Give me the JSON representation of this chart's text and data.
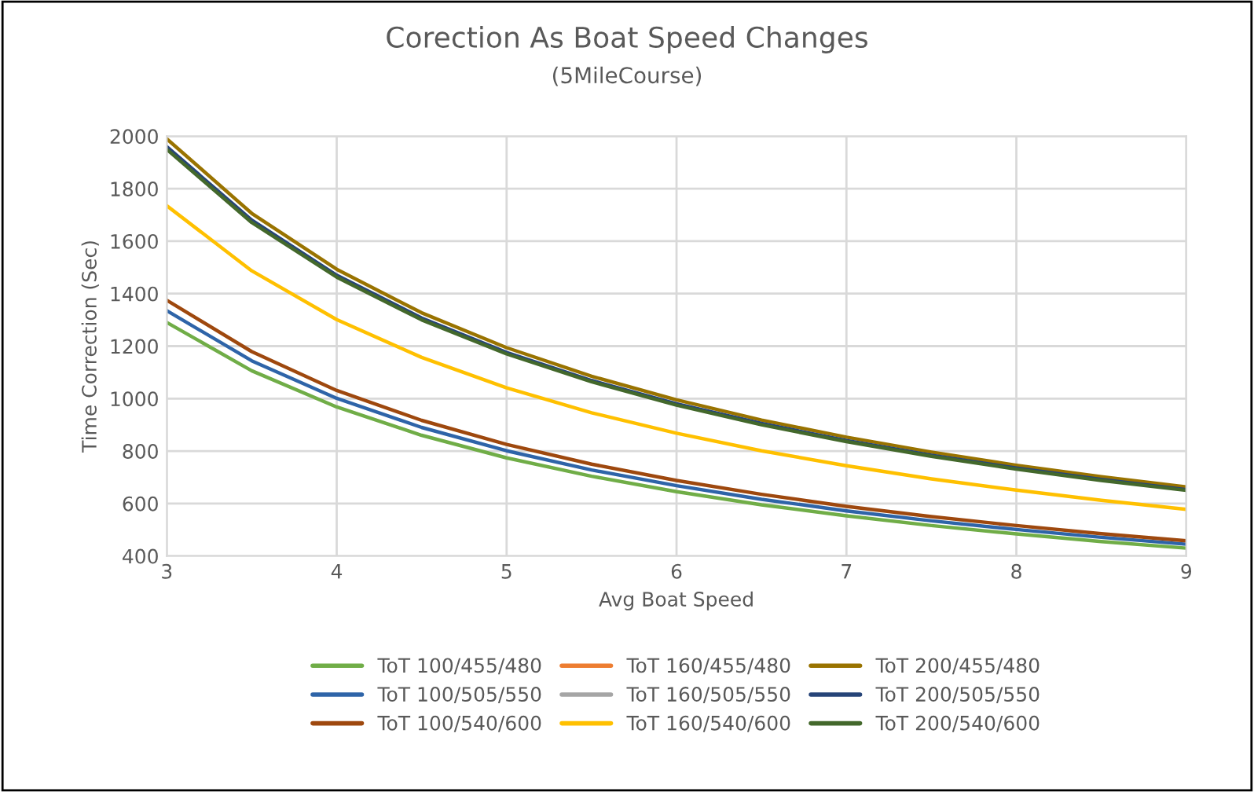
{
  "chart_data": {
    "type": "line",
    "title": "Corection As Boat Speed Changes",
    "subtitle": "(5MileCourse)",
    "xlabel": "Avg Boat Speed",
    "ylabel": "Time Correction (Sec)",
    "x": [
      3,
      3.5,
      4,
      4.5,
      5,
      5.5,
      6,
      6.5,
      7,
      7.5,
      8,
      8.5,
      9
    ],
    "series": [
      {
        "name": "ToT 100/455/480",
        "color": "#70ad47",
        "values": [
          1290,
          1106,
          968,
          860,
          774,
          704,
          645,
          595,
          553,
          516,
          484,
          455,
          430
        ]
      },
      {
        "name": "ToT 100/505/550",
        "color": "#2e64a8",
        "values": [
          1335,
          1144,
          1001,
          890,
          801,
          728,
          668,
          616,
          572,
          534,
          501,
          471,
          445
        ]
      },
      {
        "name": "ToT 100/540/600",
        "color": "#9e480e",
        "values": [
          1375,
          1179,
          1031,
          917,
          825,
          750,
          688,
          635,
          589,
          550,
          516,
          485,
          458
        ]
      },
      {
        "name": "ToT 160/455/480",
        "color": "#ed7d31",
        "values": [
          null,
          null,
          null,
          null,
          null,
          null,
          null,
          null,
          null,
          null,
          null,
          null,
          null
        ]
      },
      {
        "name": "ToT 160/505/550",
        "color": "#a5a5a5",
        "values": [
          null,
          null,
          null,
          null,
          null,
          null,
          null,
          null,
          null,
          null,
          null,
          null,
          null
        ]
      },
      {
        "name": "ToT 160/540/600",
        "color": "#ffc000",
        "values": [
          1735,
          1487,
          1301,
          1157,
          1041,
          946,
          868,
          801,
          744,
          694,
          651,
          612,
          578
        ]
      },
      {
        "name": "ToT 200/455/480",
        "color": "#997300",
        "values": [
          1990,
          1706,
          1493,
          1327,
          1194,
          1085,
          995,
          918,
          853,
          796,
          746,
          702,
          663
        ]
      },
      {
        "name": "ToT 200/505/550",
        "color": "#264478",
        "values": [
          1960,
          1680,
          1470,
          1307,
          1176,
          1069,
          980,
          905,
          840,
          784,
          735,
          692,
          653
        ]
      },
      {
        "name": "ToT 200/540/600",
        "color": "#43682b",
        "values": [
          1950,
          1671,
          1463,
          1300,
          1170,
          1064,
          975,
          900,
          836,
          780,
          731,
          688,
          650
        ]
      }
    ],
    "xlim": [
      3,
      9
    ],
    "xticks": [
      3,
      4,
      5,
      6,
      7,
      8,
      9
    ],
    "ylim": [
      400,
      2000
    ],
    "yticks": [
      400,
      600,
      800,
      1000,
      1200,
      1400,
      1600,
      1800,
      2000
    ],
    "grid": true,
    "legend": "bottom",
    "marker": "none",
    "line_style": "solid"
  }
}
